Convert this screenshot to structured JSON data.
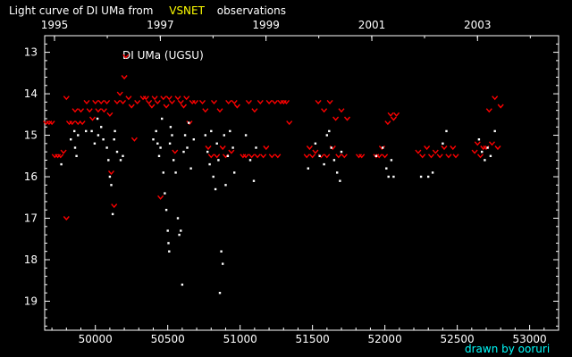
{
  "colors": {
    "background": "#000000",
    "axis": "#ffffff",
    "title_text": "#ffffff",
    "title_highlight": "#ffff00",
    "visual_points": "#ffffff",
    "upper_limit_points": "#ff0000",
    "credit_text": "#00ffff"
  },
  "title": {
    "prefix": "Light curve of DI UMa from",
    "highlight": "VSNET",
    "suffix": "observations"
  },
  "credit": "drawn by ooruri",
  "chart_data": {
    "type": "scatter",
    "star_label": "DI UMa (UGSU)",
    "x_axis": {
      "label": "",
      "range": [
        49650,
        53200
      ],
      "ticks": [
        50000,
        50500,
        51000,
        51500,
        52000,
        52500,
        53000
      ],
      "tick_labels": [
        "50000",
        "50500",
        "51000",
        "51500",
        "52000",
        "52500",
        "53000"
      ]
    },
    "top_axis": {
      "ticks": [
        49718,
        50449,
        51179,
        51910,
        52640
      ],
      "tick_labels": [
        "1995",
        "1997",
        "1999",
        "2001",
        "2003"
      ]
    },
    "y_axis": {
      "label": "",
      "range": [
        12.6,
        19.7
      ],
      "inverted": true,
      "ticks": [
        13,
        14,
        15,
        16,
        17,
        18,
        19
      ],
      "tick_labels": [
        "13",
        "14",
        "15",
        "16",
        "17",
        "18",
        "19"
      ]
    },
    "series": [
      {
        "kind": "positive observations",
        "color": "#ffffff",
        "points": [
          [
            49765,
            15.7
          ],
          [
            49830,
            15.1
          ],
          [
            49855,
            14.9
          ],
          [
            49860,
            15.3
          ],
          [
            49870,
            15.5
          ],
          [
            49880,
            15.0
          ],
          [
            49935,
            14.9
          ],
          [
            49975,
            14.9
          ],
          [
            49995,
            15.2
          ],
          [
            50015,
            14.6
          ],
          [
            50020,
            15.0
          ],
          [
            50040,
            14.8
          ],
          [
            50055,
            15.1
          ],
          [
            50080,
            15.3
          ],
          [
            50090,
            15.6
          ],
          [
            50100,
            16.0
          ],
          [
            50110,
            16.2
          ],
          [
            50120,
            16.9
          ],
          [
            50130,
            15.1
          ],
          [
            50135,
            14.9
          ],
          [
            50150,
            15.4
          ],
          [
            50175,
            15.6
          ],
          [
            50190,
            15.5
          ],
          [
            50400,
            15.1
          ],
          [
            50420,
            14.9
          ],
          [
            50430,
            15.2
          ],
          [
            50440,
            15.5
          ],
          [
            50450,
            15.3
          ],
          [
            50460,
            14.6
          ],
          [
            50470,
            15.9
          ],
          [
            50480,
            16.4
          ],
          [
            50490,
            16.8
          ],
          [
            50500,
            17.3
          ],
          [
            50505,
            17.6
          ],
          [
            50510,
            17.8
          ],
          [
            50515,
            15.2
          ],
          [
            50520,
            14.8
          ],
          [
            50530,
            15.0
          ],
          [
            50540,
            15.6
          ],
          [
            50555,
            15.9
          ],
          [
            50570,
            17.0
          ],
          [
            50580,
            17.4
          ],
          [
            50590,
            17.3
          ],
          [
            50600,
            18.6
          ],
          [
            50610,
            15.4
          ],
          [
            50620,
            15.0
          ],
          [
            50635,
            15.3
          ],
          [
            50645,
            14.7
          ],
          [
            50660,
            15.8
          ],
          [
            50680,
            15.1
          ],
          [
            50760,
            15.0
          ],
          [
            50775,
            15.4
          ],
          [
            50790,
            15.7
          ],
          [
            50800,
            14.9
          ],
          [
            50815,
            16.0
          ],
          [
            50830,
            16.3
          ],
          [
            50840,
            15.2
          ],
          [
            50850,
            15.6
          ],
          [
            50860,
            18.8
          ],
          [
            50870,
            17.8
          ],
          [
            50880,
            18.1
          ],
          [
            50890,
            15.0
          ],
          [
            50900,
            16.2
          ],
          [
            50915,
            15.5
          ],
          [
            50930,
            14.9
          ],
          [
            50950,
            15.3
          ],
          [
            50960,
            15.9
          ],
          [
            51040,
            15.0
          ],
          [
            51070,
            15.6
          ],
          [
            51095,
            16.1
          ],
          [
            51110,
            15.3
          ],
          [
            51470,
            15.8
          ],
          [
            51520,
            15.2
          ],
          [
            51550,
            15.5
          ],
          [
            51580,
            15.7
          ],
          [
            51600,
            15.0
          ],
          [
            51615,
            14.9
          ],
          [
            51630,
            15.3
          ],
          [
            51650,
            15.6
          ],
          [
            51670,
            15.9
          ],
          [
            51690,
            16.1
          ],
          [
            51700,
            15.4
          ],
          [
            51940,
            15.5
          ],
          [
            51985,
            15.3
          ],
          [
            52010,
            15.8
          ],
          [
            52025,
            16.0
          ],
          [
            52045,
            15.6
          ],
          [
            52060,
            16.0
          ],
          [
            52250,
            16.0
          ],
          [
            52300,
            16.0
          ],
          [
            52330,
            15.9
          ],
          [
            52400,
            15.2
          ],
          [
            52425,
            14.9
          ],
          [
            52650,
            15.1
          ],
          [
            52670,
            15.4
          ],
          [
            52690,
            15.6
          ],
          [
            52710,
            15.3
          ],
          [
            52730,
            15.5
          ],
          [
            52760,
            14.9
          ]
        ]
      },
      {
        "kind": "fainter-than (upper limit)",
        "color": "#ff0000",
        "points": [
          [
            49660,
            14.7
          ],
          [
            49680,
            14.7
          ],
          [
            49700,
            14.7
          ],
          [
            49720,
            15.5
          ],
          [
            49740,
            15.5
          ],
          [
            49760,
            15.5
          ],
          [
            49780,
            15.4
          ],
          [
            49800,
            14.1
          ],
          [
            49800,
            17.0
          ],
          [
            49820,
            14.7
          ],
          [
            49840,
            14.7
          ],
          [
            49860,
            14.4
          ],
          [
            49880,
            14.7
          ],
          [
            49900,
            14.4
          ],
          [
            49910,
            14.7
          ],
          [
            49940,
            14.2
          ],
          [
            49960,
            14.4
          ],
          [
            49980,
            14.6
          ],
          [
            50000,
            14.2
          ],
          [
            50020,
            14.4
          ],
          [
            50040,
            14.2
          ],
          [
            50060,
            14.4
          ],
          [
            50080,
            14.2
          ],
          [
            50100,
            14.5
          ],
          [
            50110,
            15.9
          ],
          [
            50130,
            16.7
          ],
          [
            50150,
            14.2
          ],
          [
            50170,
            14.0
          ],
          [
            50190,
            14.2
          ],
          [
            50200,
            13.6
          ],
          [
            50210,
            13.1
          ],
          [
            50230,
            14.1
          ],
          [
            50250,
            14.3
          ],
          [
            50270,
            15.1
          ],
          [
            50290,
            14.2
          ],
          [
            50330,
            14.1
          ],
          [
            50350,
            14.1
          ],
          [
            50370,
            14.2
          ],
          [
            50390,
            14.3
          ],
          [
            50410,
            14.1
          ],
          [
            50430,
            14.2
          ],
          [
            50450,
            16.5
          ],
          [
            50470,
            14.1
          ],
          [
            50490,
            14.3
          ],
          [
            50510,
            14.1
          ],
          [
            50530,
            14.2
          ],
          [
            50550,
            15.4
          ],
          [
            50570,
            14.1
          ],
          [
            50590,
            14.2
          ],
          [
            50610,
            14.3
          ],
          [
            50630,
            14.1
          ],
          [
            50650,
            14.7
          ],
          [
            50670,
            14.2
          ],
          [
            50690,
            14.2
          ],
          [
            50740,
            14.2
          ],
          [
            50760,
            14.4
          ],
          [
            50780,
            15.3
          ],
          [
            50800,
            15.5
          ],
          [
            50820,
            14.2
          ],
          [
            50840,
            15.5
          ],
          [
            50860,
            14.4
          ],
          [
            50880,
            15.3
          ],
          [
            50900,
            15.5
          ],
          [
            50920,
            14.2
          ],
          [
            50940,
            15.4
          ],
          [
            50960,
            14.2
          ],
          [
            50980,
            14.3
          ],
          [
            51020,
            15.5
          ],
          [
            51040,
            15.5
          ],
          [
            51060,
            14.2
          ],
          [
            51080,
            15.5
          ],
          [
            51100,
            14.4
          ],
          [
            51120,
            15.5
          ],
          [
            51140,
            14.2
          ],
          [
            51160,
            15.5
          ],
          [
            51180,
            15.3
          ],
          [
            51200,
            14.2
          ],
          [
            51220,
            15.5
          ],
          [
            51240,
            14.2
          ],
          [
            51260,
            15.5
          ],
          [
            51280,
            14.2
          ],
          [
            51300,
            14.2
          ],
          [
            51320,
            14.2
          ],
          [
            51340,
            14.7
          ],
          [
            51460,
            15.5
          ],
          [
            51480,
            15.3
          ],
          [
            51500,
            15.5
          ],
          [
            51520,
            15.4
          ],
          [
            51540,
            14.2
          ],
          [
            51560,
            15.5
          ],
          [
            51580,
            14.4
          ],
          [
            51600,
            15.5
          ],
          [
            51620,
            14.2
          ],
          [
            51640,
            15.3
          ],
          [
            51660,
            14.6
          ],
          [
            51680,
            15.5
          ],
          [
            51700,
            14.4
          ],
          [
            51720,
            15.5
          ],
          [
            51740,
            14.6
          ],
          [
            51820,
            15.5
          ],
          [
            51840,
            15.5
          ],
          [
            51940,
            15.5
          ],
          [
            51960,
            15.5
          ],
          [
            51980,
            15.3
          ],
          [
            52000,
            15.5
          ],
          [
            52020,
            14.7
          ],
          [
            52040,
            14.5
          ],
          [
            52060,
            14.6
          ],
          [
            52080,
            14.5
          ],
          [
            52230,
            15.4
          ],
          [
            52260,
            15.5
          ],
          [
            52290,
            15.3
          ],
          [
            52320,
            15.5
          ],
          [
            52350,
            15.4
          ],
          [
            52380,
            15.5
          ],
          [
            52410,
            15.3
          ],
          [
            52440,
            15.5
          ],
          [
            52470,
            15.3
          ],
          [
            52490,
            15.5
          ],
          [
            52620,
            15.4
          ],
          [
            52640,
            15.2
          ],
          [
            52660,
            15.5
          ],
          [
            52680,
            15.3
          ],
          [
            52700,
            15.3
          ],
          [
            52720,
            14.4
          ],
          [
            52740,
            15.2
          ],
          [
            52760,
            14.1
          ],
          [
            52780,
            15.3
          ],
          [
            52800,
            14.3
          ]
        ]
      }
    ]
  }
}
